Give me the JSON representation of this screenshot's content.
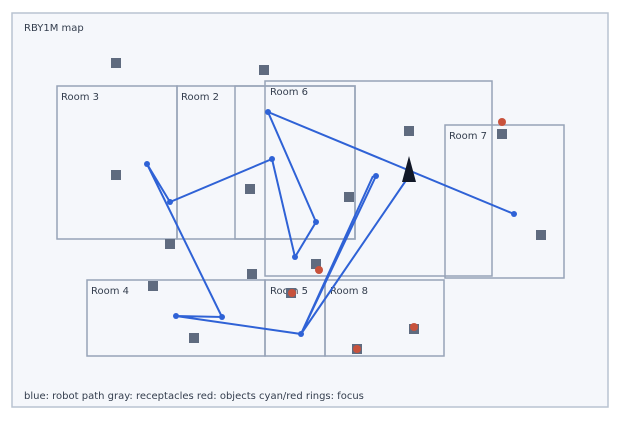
{
  "title": "RBY1M map",
  "rooms": [
    {
      "label": "Room 3"
    },
    {
      "label": "Room 2"
    },
    {
      "label": "Room 6"
    },
    {
      "label": "Room 7"
    },
    {
      "label": "Room 4"
    },
    {
      "label": "Room 5"
    },
    {
      "label": "Room 8"
    }
  ],
  "legend": "blue: robot path  gray: receptacles  red: objects  cyan/red rings: focus"
}
